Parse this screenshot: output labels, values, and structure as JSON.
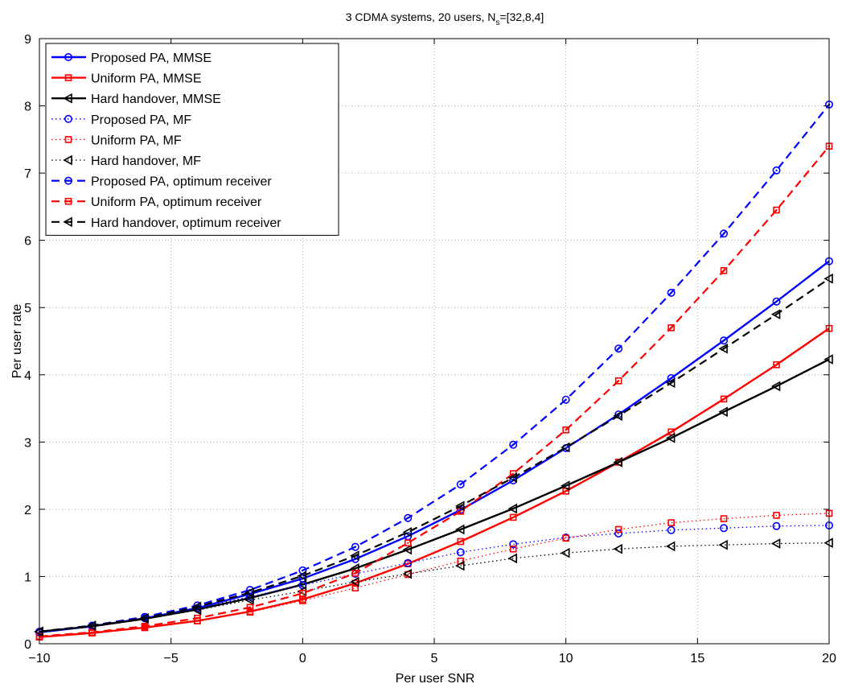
{
  "chart_data": {
    "type": "line",
    "title": "3 CDMA systems, 20 users, N",
    "title_sub": "s",
    "title_suffix": "=[32,8,4]",
    "xlabel": "Per user SNR",
    "ylabel": "Per user rate",
    "xlim": [
      -10,
      20
    ],
    "ylim": [
      0,
      9
    ],
    "xticks": [
      -10,
      -5,
      0,
      5,
      10,
      15,
      20
    ],
    "xtick_labels": [
      "−10",
      "−5",
      "0",
      "5",
      "10",
      "15",
      "20"
    ],
    "yticks": [
      0,
      1,
      2,
      3,
      4,
      5,
      6,
      7,
      8,
      9
    ],
    "ytick_labels": [
      "0",
      "1",
      "2",
      "3",
      "4",
      "5",
      "6",
      "7",
      "8",
      "9"
    ],
    "grid": true,
    "legend_position": "top-left",
    "x": [
      -10,
      -8,
      -6,
      -4,
      -2,
      0,
      2,
      4,
      6,
      8,
      10,
      12,
      14,
      16,
      18,
      20
    ],
    "series": [
      {
        "name": "Proposed PA, MMSE",
        "color": "#0000ff",
        "line": "solid",
        "marker": "circle",
        "values": [
          0.17,
          0.26,
          0.38,
          0.53,
          0.74,
          0.97,
          1.26,
          1.6,
          1.99,
          2.43,
          2.91,
          3.41,
          3.95,
          4.51,
          5.09,
          5.69
        ]
      },
      {
        "name": "Uniform PA, MMSE",
        "color": "#ff0000",
        "line": "solid",
        "marker": "square",
        "values": [
          0.1,
          0.16,
          0.24,
          0.34,
          0.48,
          0.66,
          0.9,
          1.19,
          1.52,
          1.88,
          2.27,
          2.7,
          3.15,
          3.64,
          4.15,
          4.69
        ]
      },
      {
        "name": "Hard handover, MMSE",
        "color": "#000000",
        "line": "solid",
        "marker": "triangle-left",
        "values": [
          0.18,
          0.26,
          0.37,
          0.51,
          0.68,
          0.88,
          1.12,
          1.4,
          1.7,
          2.01,
          2.35,
          2.7,
          3.06,
          3.45,
          3.83,
          4.23
        ]
      },
      {
        "name": "Proposed PA, MF",
        "color": "#0000ff",
        "line": "dotted",
        "marker": "circle",
        "values": [
          0.17,
          0.26,
          0.38,
          0.53,
          0.7,
          0.87,
          1.04,
          1.2,
          1.36,
          1.48,
          1.58,
          1.64,
          1.69,
          1.72,
          1.75,
          1.76
        ]
      },
      {
        "name": "Uniform PA, MF",
        "color": "#ff0000",
        "line": "dotted",
        "marker": "square",
        "values": [
          0.1,
          0.16,
          0.24,
          0.34,
          0.47,
          0.64,
          0.83,
          1.03,
          1.23,
          1.41,
          1.57,
          1.7,
          1.8,
          1.86,
          1.91,
          1.94
        ]
      },
      {
        "name": "Hard handover, MF",
        "color": "#000000",
        "line": "dotted",
        "marker": "triangle-left",
        "values": [
          0.18,
          0.26,
          0.37,
          0.5,
          0.65,
          0.78,
          0.92,
          1.04,
          1.16,
          1.27,
          1.35,
          1.41,
          1.45,
          1.47,
          1.49,
          1.5
        ]
      },
      {
        "name": "Proposed PA, optimum receiver",
        "color": "#0000ff",
        "line": "dashed",
        "marker": "circle-dot",
        "values": [
          0.18,
          0.27,
          0.4,
          0.57,
          0.8,
          1.09,
          1.44,
          1.87,
          2.37,
          2.96,
          3.63,
          4.39,
          5.22,
          6.1,
          7.04,
          8.02
        ]
      },
      {
        "name": "Uniform PA, optimum receiver",
        "color": "#ff0000",
        "line": "dashed",
        "marker": "square-dot",
        "values": [
          0.11,
          0.17,
          0.26,
          0.38,
          0.54,
          0.75,
          1.05,
          1.5,
          1.97,
          2.53,
          3.18,
          3.91,
          4.7,
          5.55,
          6.45,
          7.4
        ]
      },
      {
        "name": "Hard handover, optimum receiver",
        "color": "#000000",
        "line": "dashed",
        "marker": "triangle-left",
        "values": [
          0.18,
          0.27,
          0.38,
          0.55,
          0.76,
          1.01,
          1.31,
          1.66,
          2.05,
          2.47,
          2.92,
          3.39,
          3.88,
          4.39,
          4.9,
          5.43
        ]
      }
    ]
  }
}
